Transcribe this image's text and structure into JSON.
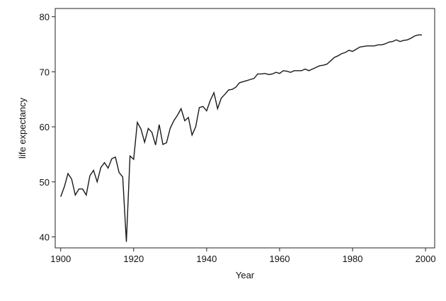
{
  "chart_data": {
    "type": "line",
    "x_label": "Year",
    "y_label": "life expectancy",
    "x": [
      1900,
      1901,
      1902,
      1903,
      1904,
      1905,
      1906,
      1907,
      1908,
      1909,
      1910,
      1911,
      1912,
      1913,
      1914,
      1915,
      1916,
      1917,
      1918,
      1919,
      1920,
      1921,
      1922,
      1923,
      1924,
      1925,
      1926,
      1927,
      1928,
      1929,
      1930,
      1931,
      1932,
      1933,
      1934,
      1935,
      1936,
      1937,
      1938,
      1939,
      1940,
      1941,
      1942,
      1943,
      1944,
      1945,
      1946,
      1947,
      1948,
      1949,
      1950,
      1951,
      1952,
      1953,
      1954,
      1955,
      1956,
      1957,
      1958,
      1959,
      1960,
      1961,
      1962,
      1963,
      1964,
      1965,
      1966,
      1967,
      1968,
      1969,
      1970,
      1971,
      1972,
      1973,
      1974,
      1975,
      1976,
      1977,
      1978,
      1979,
      1980,
      1981,
      1982,
      1983,
      1984,
      1985,
      1986,
      1987,
      1988,
      1989,
      1990,
      1991,
      1992,
      1993,
      1994,
      1995,
      1996,
      1997,
      1998,
      1999
    ],
    "series": [
      {
        "color": "#1a1a1a",
        "values": [
          47.3,
          49.1,
          51.5,
          50.5,
          47.6,
          48.7,
          48.7,
          47.6,
          51.1,
          52.1,
          50.0,
          52.6,
          53.5,
          52.5,
          54.2,
          54.5,
          51.7,
          50.9,
          39.1,
          54.7,
          54.1,
          60.8,
          59.6,
          57.2,
          59.7,
          59.0,
          56.7,
          60.4,
          56.8,
          57.1,
          59.7,
          61.1,
          62.1,
          63.3,
          61.1,
          61.7,
          58.5,
          60.0,
          63.5,
          63.7,
          62.9,
          64.8,
          66.2,
          63.3,
          65.2,
          65.9,
          66.7,
          66.8,
          67.2,
          68.0,
          68.2,
          68.4,
          68.6,
          68.8,
          69.6,
          69.6,
          69.7,
          69.5,
          69.6,
          69.9,
          69.7,
          70.2,
          70.1,
          69.9,
          70.2,
          70.2,
          70.2,
          70.5,
          70.2,
          70.5,
          70.8,
          71.1,
          71.2,
          71.4,
          72.0,
          72.6,
          72.9,
          73.3,
          73.5,
          73.9,
          73.7,
          74.1,
          74.5,
          74.6,
          74.7,
          74.7,
          74.7,
          74.9,
          74.9,
          75.1,
          75.4,
          75.5,
          75.8,
          75.5,
          75.7,
          75.8,
          76.1,
          76.5,
          76.7,
          76.7
        ]
      }
    ],
    "xlim": [
      1898.5,
      2002.5
    ],
    "xticks": [
      1900,
      1920,
      1940,
      1960,
      1980,
      2000
    ],
    "ylim": [
      38,
      81.5
    ],
    "yticks": [
      40,
      50,
      60,
      70,
      80
    ]
  }
}
